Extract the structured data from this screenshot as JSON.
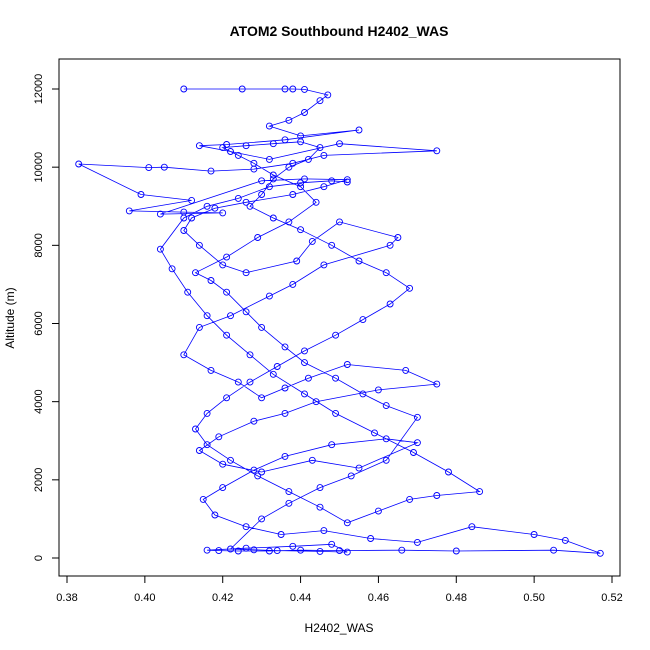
{
  "colors": {
    "series": "#0000ff",
    "axis": "#000000",
    "background": "#ffffff"
  },
  "chart_data": {
    "type": "scatter",
    "title": "ATOM2 Southbound H2402_WAS",
    "xlabel": "H2402_WAS",
    "ylabel": "Altitude (m)",
    "xlim": [
      0.38,
      0.52
    ],
    "ylim": [
      0,
      12000
    ],
    "xticks": [
      "0.38",
      "0.40",
      "0.42",
      "0.44",
      "0.46",
      "0.48",
      "0.50",
      "0.52"
    ],
    "yticks": [
      "0",
      "2000",
      "4000",
      "6000",
      "8000",
      "10000",
      "12000"
    ],
    "grid": false,
    "legend": "none",
    "markers": "open-circle",
    "connected": true,
    "series": [
      {
        "values": [
          [
            0.41,
            12000
          ],
          [
            0.425,
            12000
          ],
          [
            0.436,
            12000
          ],
          [
            0.438,
            12000
          ],
          [
            0.441,
            11990
          ],
          [
            0.447,
            11850
          ],
          [
            0.445,
            11700
          ],
          [
            0.441,
            11400
          ],
          [
            0.437,
            11200
          ],
          [
            0.432,
            11050
          ],
          [
            0.44,
            10800
          ],
          [
            0.455,
            10950
          ],
          [
            0.436,
            10700
          ],
          [
            0.421,
            10580
          ],
          [
            0.414,
            10550
          ],
          [
            0.422,
            10400
          ],
          [
            0.432,
            10200
          ],
          [
            0.45,
            10600
          ],
          [
            0.475,
            10420
          ],
          [
            0.446,
            10300
          ],
          [
            0.438,
            10100
          ],
          [
            0.428,
            9950
          ],
          [
            0.417,
            9900
          ],
          [
            0.405,
            10000
          ],
          [
            0.401,
            9990
          ],
          [
            0.383,
            10080
          ],
          [
            0.399,
            9300
          ],
          [
            0.412,
            9150
          ],
          [
            0.396,
            8880
          ],
          [
            0.41,
            8850
          ],
          [
            0.42,
            8830
          ],
          [
            0.404,
            8800
          ],
          [
            0.43,
            9650
          ],
          [
            0.441,
            9700
          ],
          [
            0.452,
            9680
          ],
          [
            0.446,
            9500
          ],
          [
            0.438,
            9300
          ],
          [
            0.426,
            9100
          ],
          [
            0.418,
            8950
          ],
          [
            0.412,
            8700
          ],
          [
            0.41,
            8380
          ],
          [
            0.414,
            8000
          ],
          [
            0.42,
            7500
          ],
          [
            0.426,
            7300
          ],
          [
            0.439,
            7600
          ],
          [
            0.443,
            8100
          ],
          [
            0.45,
            8600
          ],
          [
            0.465,
            8200
          ],
          [
            0.463,
            8000
          ],
          [
            0.446,
            7500
          ],
          [
            0.438,
            7000
          ],
          [
            0.432,
            6700
          ],
          [
            0.422,
            6200
          ],
          [
            0.414,
            5900
          ],
          [
            0.41,
            5200
          ],
          [
            0.417,
            4800
          ],
          [
            0.424,
            4500
          ],
          [
            0.43,
            4100
          ],
          [
            0.436,
            4350
          ],
          [
            0.442,
            4600
          ],
          [
            0.452,
            4950
          ],
          [
            0.467,
            4800
          ],
          [
            0.475,
            4450
          ],
          [
            0.46,
            4300
          ],
          [
            0.444,
            4000
          ],
          [
            0.436,
            3700
          ],
          [
            0.428,
            3500
          ],
          [
            0.419,
            3100
          ],
          [
            0.414,
            2750
          ],
          [
            0.42,
            2400
          ],
          [
            0.43,
            2200
          ],
          [
            0.443,
            2500
          ],
          [
            0.455,
            2300
          ],
          [
            0.47,
            2950
          ],
          [
            0.462,
            3050
          ],
          [
            0.448,
            2900
          ],
          [
            0.436,
            2600
          ],
          [
            0.428,
            2250
          ],
          [
            0.42,
            1800
          ],
          [
            0.415,
            1500
          ],
          [
            0.418,
            1100
          ],
          [
            0.426,
            800
          ],
          [
            0.435,
            600
          ],
          [
            0.446,
            700
          ],
          [
            0.458,
            500
          ],
          [
            0.47,
            400
          ],
          [
            0.484,
            800
          ],
          [
            0.5,
            600
          ],
          [
            0.508,
            450
          ],
          [
            0.517,
            120
          ],
          [
            0.505,
            200
          ],
          [
            0.48,
            180
          ],
          [
            0.466,
            200
          ],
          [
            0.45,
            190
          ],
          [
            0.44,
            200
          ],
          [
            0.432,
            180
          ],
          [
            0.424,
            180
          ],
          [
            0.419,
            190
          ],
          [
            0.416,
            200
          ],
          [
            0.426,
            250
          ],
          [
            0.438,
            300
          ],
          [
            0.448,
            350
          ],
          [
            0.452,
            150
          ],
          [
            0.445,
            170
          ],
          [
            0.434,
            190
          ],
          [
            0.428,
            210
          ],
          [
            0.422,
            230
          ],
          [
            0.43,
            1000
          ],
          [
            0.437,
            1400
          ],
          [
            0.445,
            1800
          ],
          [
            0.453,
            2100
          ],
          [
            0.462,
            2500
          ],
          [
            0.47,
            3600
          ],
          [
            0.462,
            3900
          ],
          [
            0.456,
            4200
          ],
          [
            0.449,
            4600
          ],
          [
            0.441,
            5000
          ],
          [
            0.436,
            5400
          ],
          [
            0.43,
            5900
          ],
          [
            0.426,
            6300
          ],
          [
            0.421,
            6800
          ],
          [
            0.417,
            7100
          ],
          [
            0.413,
            7300
          ],
          [
            0.421,
            7700
          ],
          [
            0.429,
            8200
          ],
          [
            0.437,
            8600
          ],
          [
            0.444,
            9100
          ],
          [
            0.44,
            9500
          ],
          [
            0.433,
            9800
          ],
          [
            0.428,
            10100
          ],
          [
            0.424,
            10300
          ],
          [
            0.42,
            10500
          ],
          [
            0.426,
            10550
          ],
          [
            0.433,
            10600
          ],
          [
            0.44,
            10650
          ],
          [
            0.445,
            10500
          ],
          [
            0.442,
            10200
          ],
          [
            0.437,
            10000
          ],
          [
            0.433,
            9700
          ],
          [
            0.43,
            9300
          ],
          [
            0.427,
            9000
          ],
          [
            0.433,
            8700
          ],
          [
            0.44,
            8400
          ],
          [
            0.448,
            8000
          ],
          [
            0.455,
            7600
          ],
          [
            0.462,
            7300
          ],
          [
            0.468,
            6900
          ],
          [
            0.463,
            6500
          ],
          [
            0.456,
            6100
          ],
          [
            0.449,
            5700
          ],
          [
            0.441,
            5300
          ],
          [
            0.434,
            4900
          ],
          [
            0.427,
            4500
          ],
          [
            0.421,
            4100
          ],
          [
            0.416,
            3700
          ],
          [
            0.413,
            3300
          ],
          [
            0.416,
            2900
          ],
          [
            0.422,
            2500
          ],
          [
            0.429,
            2100
          ],
          [
            0.437,
            1700
          ],
          [
            0.445,
            1300
          ],
          [
            0.452,
            900
          ],
          [
            0.46,
            1200
          ],
          [
            0.468,
            1500
          ],
          [
            0.475,
            1600
          ],
          [
            0.486,
            1700
          ],
          [
            0.478,
            2200
          ],
          [
            0.469,
            2700
          ],
          [
            0.459,
            3200
          ],
          [
            0.449,
            3700
          ],
          [
            0.441,
            4200
          ],
          [
            0.433,
            4700
          ],
          [
            0.427,
            5200
          ],
          [
            0.421,
            5700
          ],
          [
            0.416,
            6200
          ],
          [
            0.411,
            6800
          ],
          [
            0.407,
            7400
          ],
          [
            0.404,
            7900
          ],
          [
            0.41,
            8700
          ],
          [
            0.416,
            9000
          ],
          [
            0.424,
            9200
          ],
          [
            0.432,
            9500
          ],
          [
            0.44,
            9600
          ],
          [
            0.448,
            9650
          ],
          [
            0.452,
            9620
          ]
        ]
      }
    ]
  }
}
